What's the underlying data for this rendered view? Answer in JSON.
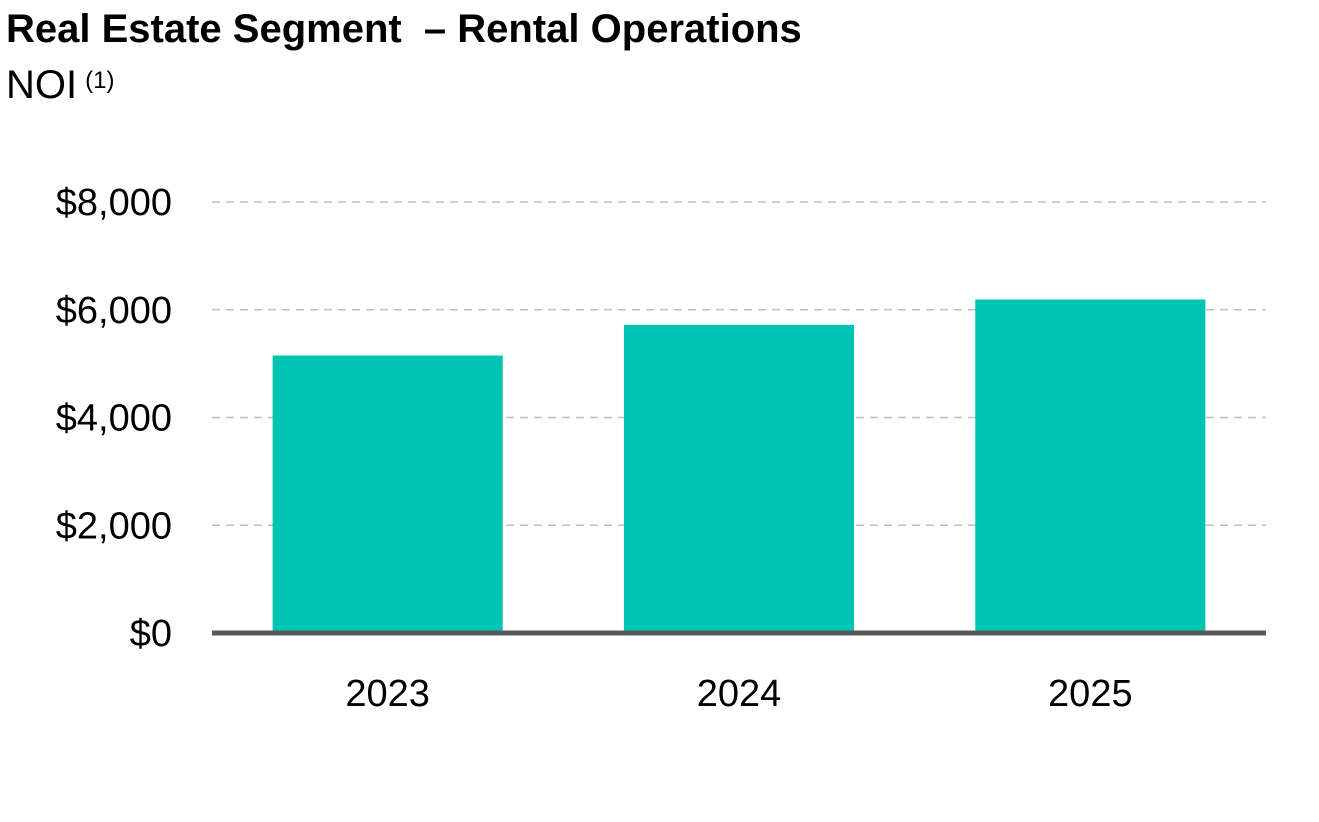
{
  "chart_data": {
    "type": "bar",
    "title": "Real Estate Segment  – Rental Operations",
    "subtitle": "NOI",
    "subtitle_footnote": "(1)",
    "categories": [
      "2023",
      "2024",
      "2025"
    ],
    "values": [
      5150,
      5720,
      6190
    ],
    "ylim": [
      0,
      8000
    ],
    "yticks": [
      0,
      2000,
      4000,
      6000,
      8000
    ],
    "ytick_labels": [
      "$0",
      "$2,000",
      "$4,000",
      "$6,000",
      "$8,000"
    ],
    "xlabel": "",
    "ylabel": "",
    "grid": true,
    "bar_color": "#00c4b3",
    "baseline_color": "#595959",
    "grid_color": "#bfbfbf"
  }
}
